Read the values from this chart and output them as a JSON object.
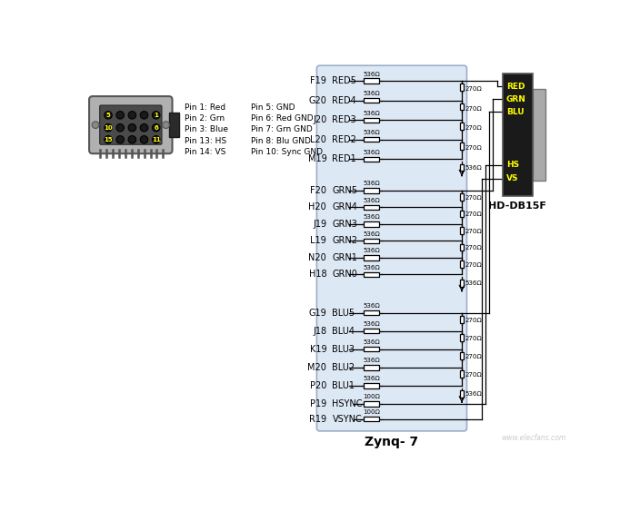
{
  "bg_color": "#ffffff",
  "zynq_bg": "#dde8f5",
  "zynq_label": "Zynq- 7",
  "db15_label": "HD-DB15F",
  "db15_color": "#1a1a1a",
  "db15_text_color": "#ffff00",
  "connector_labels": [
    "RED",
    "GRN",
    "BLU",
    "HS",
    "VS"
  ],
  "pin_info_col1": [
    "Pin 1: Red",
    "Pin 2: Grn",
    "Pin 3: Blue",
    "Pin 13: HS",
    "Pin 14: VS"
  ],
  "pin_info_col2": [
    "Pin 5: GND",
    "Pin 6: Red GND",
    "Pin 7: Grn GND",
    "Pin 8: Blu GND",
    "Pin 10: Sync GND"
  ],
  "red_pins": [
    {
      "pin": "F19",
      "sig": "RED5"
    },
    {
      "pin": "G20",
      "sig": "RED4"
    },
    {
      "pin": "J20",
      "sig": "RED3"
    },
    {
      "pin": "L20",
      "sig": "RED2"
    },
    {
      "pin": "M19",
      "sig": "RED1"
    }
  ],
  "grn_pins": [
    {
      "pin": "F20",
      "sig": "GRN5"
    },
    {
      "pin": "H20",
      "sig": "GRN4"
    },
    {
      "pin": "J19",
      "sig": "GRN3"
    },
    {
      "pin": "L19",
      "sig": "GRN2"
    },
    {
      "pin": "N20",
      "sig": "GRN1"
    },
    {
      "pin": "H18",
      "sig": "GRN0"
    }
  ],
  "blu_pins": [
    {
      "pin": "G19",
      "sig": "BLU5"
    },
    {
      "pin": "J18",
      "sig": "BLU4"
    },
    {
      "pin": "K19",
      "sig": "BLU3"
    },
    {
      "pin": "M20",
      "sig": "BLU2"
    },
    {
      "pin": "P20",
      "sig": "BLU1"
    }
  ],
  "sync_pins": [
    {
      "pin": "P19",
      "sig": "HSYNC"
    },
    {
      "pin": "R19",
      "sig": "VSYNC"
    }
  ],
  "r_series": "536Ω",
  "r_270": "270Ω",
  "r_sync": "100Ω",
  "watermark": "www.elecfans.com"
}
